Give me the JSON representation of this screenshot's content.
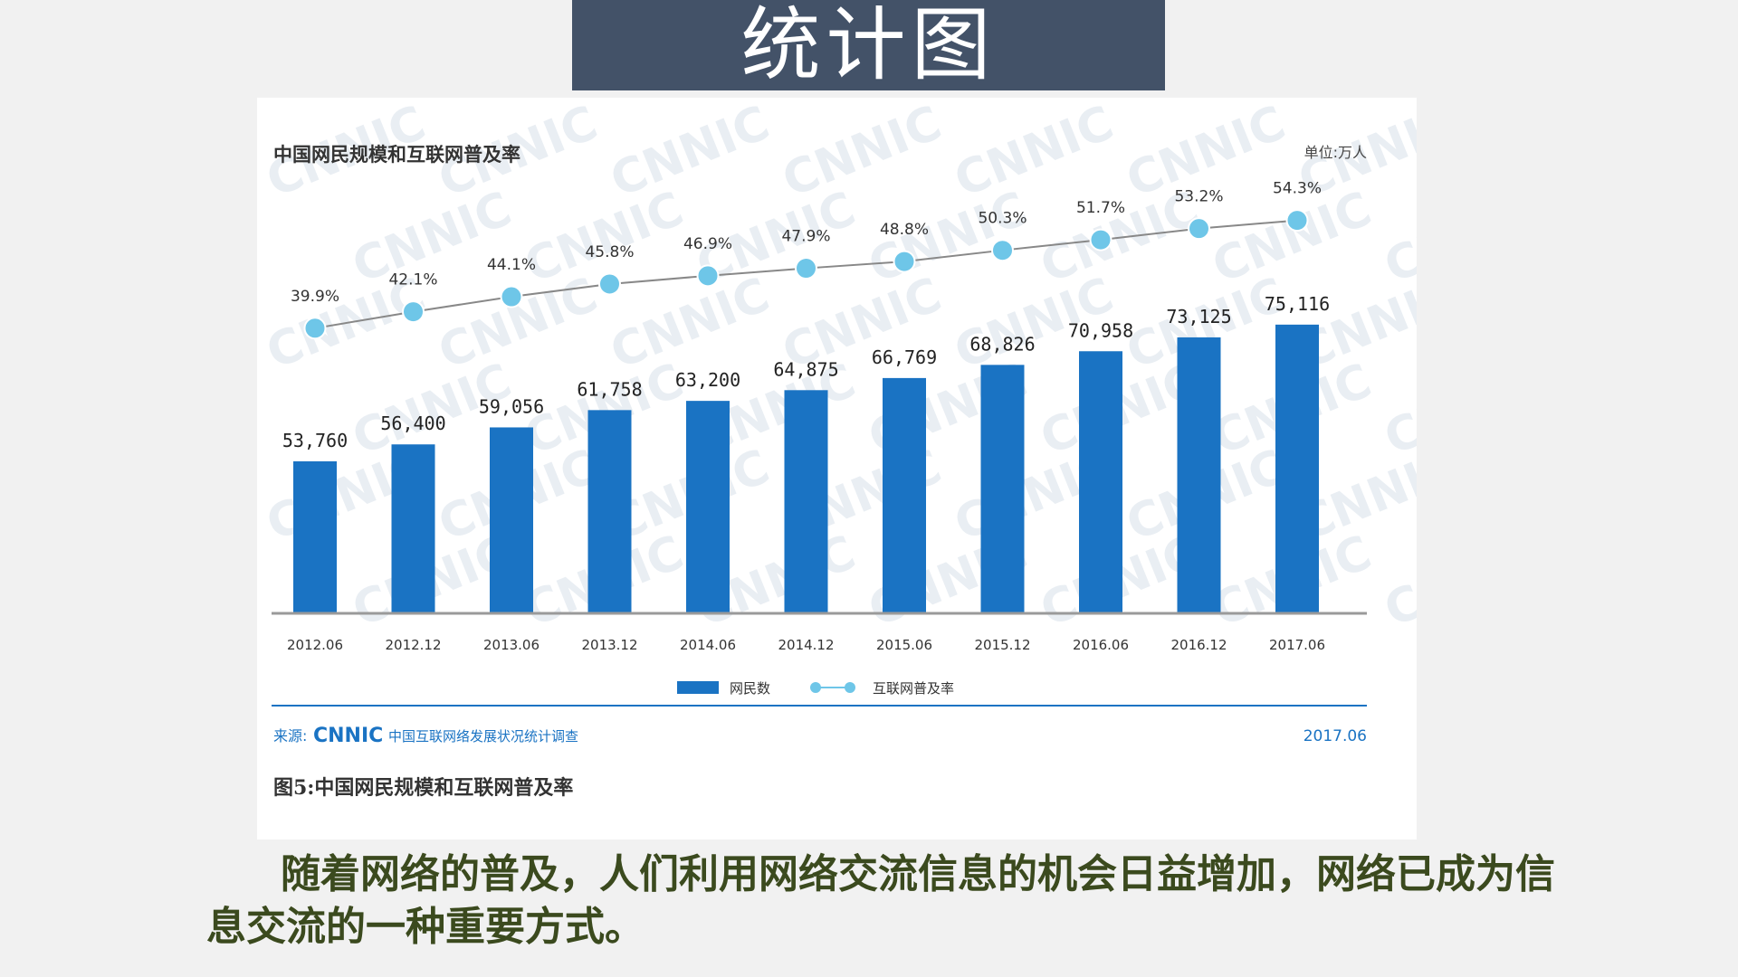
{
  "slide": {
    "title": "统计图",
    "caption": "随着网络的普及，人们利用网络交流信息的机会日益增加，网络已成为信息交流的一种重要方式。"
  },
  "figure": {
    "header_title": "中国网民规模和互联网普及率",
    "unit": "单位:万人",
    "source_prefix": "来源:",
    "source_logo": "CNNIC",
    "source_name": "中国互联网络发展状况统计调查",
    "source_date": "2017.06",
    "figure_caption": "图5:中国网民规模和互联网普及率",
    "watermark": "CNNIC"
  },
  "colors": {
    "banner": "#435268",
    "bar": "#1a73c3",
    "line": "#888888",
    "marker": "#6ec6e8",
    "source_text": "#1a73c3",
    "caption_text": "#3b4a1e"
  },
  "chart_data": {
    "type": "bar",
    "categories": [
      "2012.06",
      "2012.12",
      "2013.06",
      "2013.12",
      "2014.06",
      "2014.12",
      "2015.06",
      "2015.12",
      "2016.06",
      "2016.12",
      "2017.06"
    ],
    "series": [
      {
        "name": "网民数",
        "type": "bar",
        "values": [
          53760,
          56400,
          59056,
          61758,
          63200,
          64875,
          66769,
          68826,
          70958,
          73125,
          75116
        ],
        "labels": [
          "53,760",
          "56,400",
          "59,056",
          "61,758",
          "63,200",
          "64,875",
          "66,769",
          "68,826",
          "70,958",
          "73,125",
          "75,116"
        ]
      },
      {
        "name": "互联网普及率",
        "type": "line",
        "values": [
          39.9,
          42.1,
          44.1,
          45.8,
          46.9,
          47.9,
          48.8,
          50.3,
          51.7,
          53.2,
          54.3
        ],
        "labels": [
          "39.9%",
          "42.1%",
          "44.1%",
          "45.8%",
          "46.9%",
          "47.9%",
          "48.8%",
          "50.3%",
          "51.7%",
          "53.2%",
          "54.3%"
        ]
      }
    ],
    "legend": "bottom-center",
    "grid": false
  }
}
